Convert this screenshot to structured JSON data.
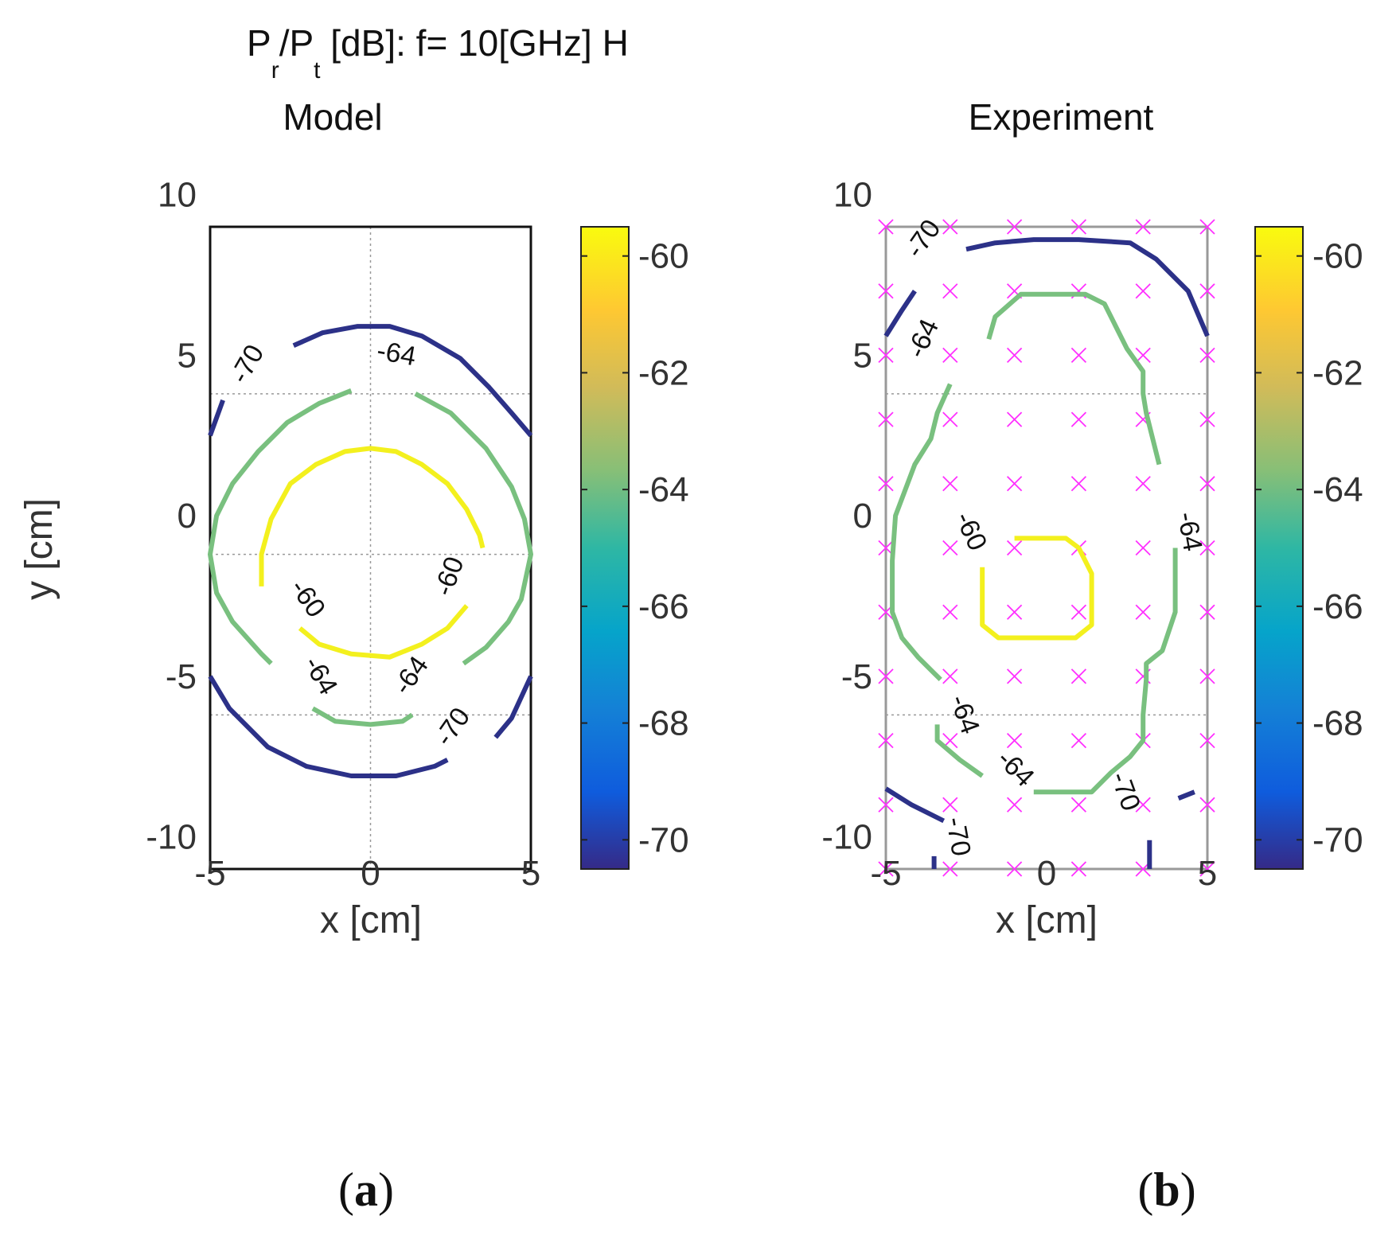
{
  "figure": {
    "title": {
      "p1": "P",
      "sub_r": "r",
      "p2": "/P",
      "sub_t": "t",
      "p3": " [dB]:  f= 10[GHz] H"
    },
    "panel_labels": [
      {
        "open": "(",
        "letter": "a",
        "close": ")"
      },
      {
        "open": "(",
        "letter": "b",
        "close": ")"
      }
    ]
  },
  "chart_data": [
    {
      "type": "contour",
      "title": "Model",
      "xlabel": "x [cm]",
      "ylabel": "y [cm]",
      "xlim": [
        -5,
        5
      ],
      "ylim": [
        -11,
        9
      ],
      "xticks": [
        -5,
        0,
        5
      ],
      "yticks": [
        -10,
        -5,
        0,
        5,
        10
      ],
      "grid": true,
      "grid_lines": {
        "x": [
          0
        ],
        "y": [
          -6.2,
          -1.2,
          3.8
        ]
      },
      "colorbar": {
        "min": -70.5,
        "max": -59.5,
        "ticks": [
          -70,
          -68,
          -66,
          -64,
          -62,
          -60
        ],
        "colormap": "parula"
      },
      "contours": [
        {
          "level": -70,
          "color": "#2c3188",
          "path": [
            [
              -5,
              2.5
            ],
            [
              -4.6,
              3.6
            ]
          ]
        },
        {
          "level": -70,
          "color": "#2c3188",
          "path": [
            [
              -2.4,
              5.3
            ],
            [
              -1.5,
              5.7
            ],
            [
              -0.4,
              5.9
            ],
            [
              0.6,
              5.9
            ],
            [
              1.6,
              5.6
            ],
            [
              2.8,
              4.9
            ],
            [
              3.7,
              4.0
            ],
            [
              4.4,
              3.2
            ],
            [
              5,
              2.5
            ]
          ]
        },
        {
          "level": -70,
          "color": "#2c3188",
          "path": [
            [
              -5,
              -5.0
            ],
            [
              -4.4,
              -6.0
            ],
            [
              -3.2,
              -7.2
            ],
            [
              -2.0,
              -7.8
            ],
            [
              -0.6,
              -8.1
            ],
            [
              0.8,
              -8.1
            ],
            [
              2.0,
              -7.8
            ],
            [
              2.4,
              -7.6
            ]
          ]
        },
        {
          "level": -70,
          "color": "#2c3188",
          "path": [
            [
              3.9,
              -6.9
            ],
            [
              4.4,
              -6.3
            ],
            [
              5,
              -5.0
            ]
          ]
        },
        {
          "level": -64,
          "color": "#79c07f",
          "path": [
            [
              -0.6,
              3.9
            ],
            [
              -1.6,
              3.5
            ],
            [
              -2.6,
              2.9
            ],
            [
              -3.5,
              2.0
            ],
            [
              -4.3,
              1.0
            ],
            [
              -4.8,
              0.0
            ],
            [
              -5,
              -1.2
            ],
            [
              -4.8,
              -2.4
            ],
            [
              -4.3,
              -3.3
            ],
            [
              -3.4,
              -4.3
            ],
            [
              -3.1,
              -4.6
            ]
          ]
        },
        {
          "level": -64,
          "color": "#79c07f",
          "path": [
            [
              1.4,
              3.8
            ],
            [
              2.5,
              3.2
            ],
            [
              3.6,
              2.1
            ],
            [
              4.4,
              0.9
            ],
            [
              4.8,
              -0.1
            ],
            [
              5,
              -1.2
            ],
            [
              4.7,
              -2.6
            ],
            [
              4.3,
              -3.3
            ],
            [
              3.6,
              -4.1
            ],
            [
              2.9,
              -4.6
            ]
          ]
        },
        {
          "level": -64,
          "color": "#79c07f",
          "path": [
            [
              -1.8,
              -6.0
            ],
            [
              -1.1,
              -6.4
            ],
            [
              0,
              -6.5
            ],
            [
              1.0,
              -6.4
            ],
            [
              1.3,
              -6.2
            ]
          ]
        },
        {
          "level": -60,
          "color": "#f3f01e",
          "path": [
            [
              -3.4,
              -2.2
            ],
            [
              -3.4,
              -1.2
            ],
            [
              -3.1,
              -0.1
            ],
            [
              -2.5,
              1.0
            ],
            [
              -1.7,
              1.6
            ],
            [
              -0.8,
              2.0
            ],
            [
              0,
              2.1
            ],
            [
              0.8,
              2.0
            ],
            [
              1.6,
              1.6
            ],
            [
              2.4,
              1.0
            ],
            [
              3.0,
              0.2
            ],
            [
              3.4,
              -0.6
            ],
            [
              3.5,
              -1.0
            ]
          ]
        },
        {
          "level": -60,
          "color": "#f3f01e",
          "path": [
            [
              -2.2,
              -3.5
            ],
            [
              -1.6,
              -4.0
            ],
            [
              -0.6,
              -4.3
            ],
            [
              0.6,
              -4.4
            ],
            [
              1.6,
              -4.0
            ],
            [
              2.4,
              -3.5
            ],
            [
              3.0,
              -2.8
            ]
          ]
        }
      ],
      "contour_labels": [
        {
          "text": "-70",
          "x": -3.8,
          "y": 4.7,
          "angle": -60
        },
        {
          "text": "-64",
          "x": 0.8,
          "y": 5.0,
          "angle": 10
        },
        {
          "text": "-60",
          "x": -2.0,
          "y": -2.6,
          "angle": 55
        },
        {
          "text": "-60",
          "x": 2.5,
          "y": -1.9,
          "angle": -70
        },
        {
          "text": "-64",
          "x": -1.6,
          "y": -5.0,
          "angle": 60
        },
        {
          "text": "-64",
          "x": 1.3,
          "y": -5.0,
          "angle": -55
        },
        {
          "text": "-70",
          "x": 2.6,
          "y": -6.6,
          "angle": -55
        }
      ]
    },
    {
      "type": "contour",
      "title": "Experiment",
      "xlabel": "x [cm]",
      "ylabel": "",
      "xlim": [
        -5,
        5
      ],
      "ylim": [
        -11,
        9
      ],
      "xticks": [
        -5,
        0,
        5
      ],
      "yticks": [
        -10,
        -5,
        0,
        5,
        10
      ],
      "grid": true,
      "grid_lines": {
        "x": [],
        "y": [
          -6.2,
          3.8
        ]
      },
      "colorbar": {
        "min": -70.5,
        "max": -59.5,
        "ticks": [
          -70,
          -68,
          -66,
          -64,
          -62,
          -60
        ],
        "colormap": "parula"
      },
      "measurement_points": {
        "marker": "x",
        "color": "#ff30ff",
        "x": [
          -5,
          -3,
          -1,
          1,
          3,
          5
        ],
        "y": [
          9,
          7,
          5,
          3,
          1,
          -1,
          -3,
          -5,
          -7,
          -9,
          -11
        ]
      },
      "contours": [
        {
          "level": -70,
          "color": "#2c3188",
          "path": [
            [
              -5,
              5.6
            ],
            [
              -4.5,
              6.4
            ],
            [
              -4.1,
              7.0
            ]
          ]
        },
        {
          "level": -70,
          "color": "#2c3188",
          "path": [
            [
              -2.5,
              8.3
            ],
            [
              -1.6,
              8.5
            ],
            [
              -0.4,
              8.6
            ],
            [
              1.0,
              8.6
            ],
            [
              2.6,
              8.5
            ],
            [
              3.4,
              8.0
            ],
            [
              4.4,
              7.0
            ],
            [
              5,
              5.6
            ]
          ]
        },
        {
          "level": -70,
          "color": "#2c3188",
          "path": [
            [
              -5,
              -8.5
            ],
            [
              -4.2,
              -9.0
            ],
            [
              -3.2,
              -9.5
            ]
          ]
        },
        {
          "level": -70,
          "color": "#2c3188",
          "path": [
            [
              4.1,
              -8.8
            ],
            [
              4.6,
              -8.6
            ]
          ]
        },
        {
          "level": -70,
          "color": "#2c3188",
          "path": [
            [
              -3.5,
              -10.6
            ],
            [
              -3.5,
              -11
            ]
          ]
        },
        {
          "level": -70,
          "color": "#2c3188",
          "path": [
            [
              3.2,
              -10.1
            ],
            [
              3.2,
              -11
            ]
          ]
        },
        {
          "level": -64,
          "color": "#79c07f",
          "path": [
            [
              -1.8,
              5.5
            ],
            [
              -1.6,
              6.2
            ],
            [
              -0.8,
              6.9
            ],
            [
              0.6,
              6.9
            ],
            [
              1.2,
              6.9
            ],
            [
              1.8,
              6.6
            ],
            [
              2.5,
              5.2
            ],
            [
              3.0,
              4.5
            ],
            [
              3.0,
              3.8
            ],
            [
              3.1,
              3.2
            ],
            [
              3.3,
              2.4
            ],
            [
              3.5,
              1.6
            ]
          ]
        },
        {
          "level": -64,
          "color": "#79c07f",
          "path": [
            [
              -3.0,
              4.1
            ],
            [
              -3.4,
              3.2
            ],
            [
              -3.6,
              2.4
            ],
            [
              -4.1,
              1.6
            ],
            [
              -4.7,
              0.0
            ],
            [
              -4.8,
              -1.4
            ],
            [
              -4.8,
              -3.0
            ],
            [
              -4.5,
              -3.8
            ],
            [
              -4.0,
              -4.4
            ],
            [
              -3.5,
              -4.9
            ],
            [
              -3.3,
              -5.1
            ]
          ]
        },
        {
          "level": -64,
          "color": "#79c07f",
          "path": [
            [
              4.0,
              -1.0
            ],
            [
              4.0,
              -3.0
            ],
            [
              3.6,
              -4.2
            ],
            [
              3.1,
              -4.6
            ],
            [
              3.1,
              -5.1
            ],
            [
              3.0,
              -6.2
            ],
            [
              3.0,
              -7.0
            ],
            [
              2.6,
              -7.5
            ],
            [
              2.0,
              -8.0
            ],
            [
              1.4,
              -8.6
            ],
            [
              -0.4,
              -8.6
            ]
          ]
        },
        {
          "level": -64,
          "color": "#79c07f",
          "path": [
            [
              -3.4,
              -6.5
            ],
            [
              -3.4,
              -7.0
            ],
            [
              -2.7,
              -7.6
            ],
            [
              -2.0,
              -8.1
            ]
          ]
        },
        {
          "level": -60,
          "color": "#f3f01e",
          "path": [
            [
              -1.0,
              -0.7
            ],
            [
              0.6,
              -0.7
            ],
            [
              1.0,
              -1.0
            ],
            [
              1.4,
              -1.8
            ],
            [
              1.4,
              -3.4
            ],
            [
              0.9,
              -3.8
            ],
            [
              -0.3,
              -3.8
            ],
            [
              -1.5,
              -3.8
            ],
            [
              -2.0,
              -3.4
            ],
            [
              -2.0,
              -2.4
            ],
            [
              -2.0,
              -1.6
            ]
          ]
        }
      ],
      "contour_labels": [
        {
          "text": "-70",
          "x": -3.8,
          "y": 8.6,
          "angle": -55
        },
        {
          "text": "-64",
          "x": -3.8,
          "y": 5.5,
          "angle": -65
        },
        {
          "text": "-60",
          "x": -2.4,
          "y": -0.5,
          "angle": 65
        },
        {
          "text": "-64",
          "x": 4.4,
          "y": -0.5,
          "angle": 80
        },
        {
          "text": "-64",
          "x": -2.6,
          "y": -6.2,
          "angle": 70
        },
        {
          "text": "-64",
          "x": -1.0,
          "y": -7.9,
          "angle": 45
        },
        {
          "text": "-70",
          "x": 2.4,
          "y": -8.6,
          "angle": 70
        },
        {
          "text": "-70",
          "x": -2.8,
          "y": -10.0,
          "angle": 80
        }
      ]
    }
  ]
}
